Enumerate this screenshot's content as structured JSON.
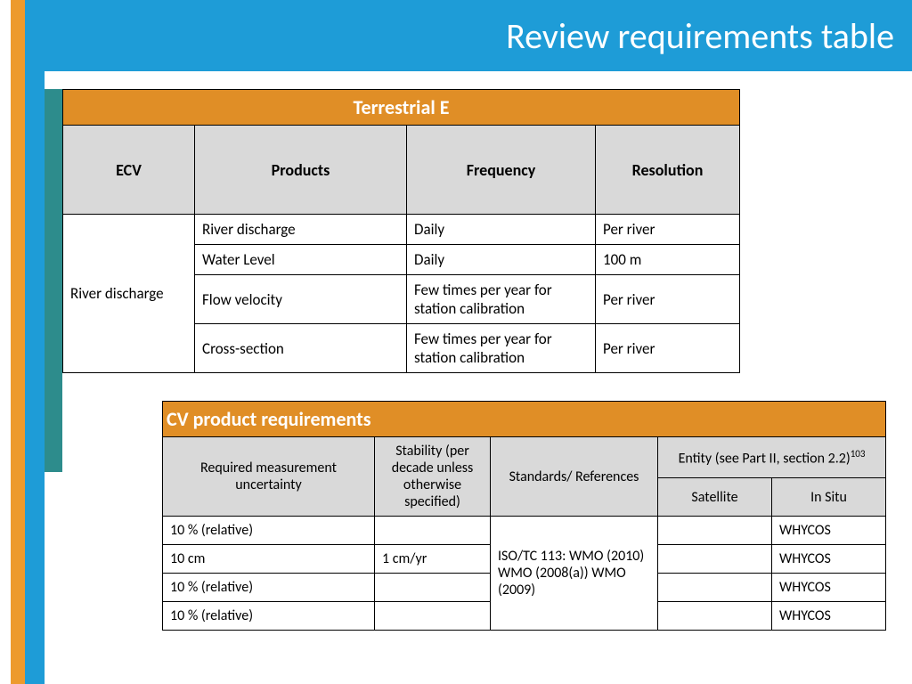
{
  "header": {
    "title": "Review requirements table"
  },
  "colors": {
    "blue": "#1e9cd7",
    "orange_bar": "#ed9a2d",
    "teal": "#2d8c8c",
    "table_banner": "#e08e26",
    "header_bg": "#d9d9d9"
  },
  "table1": {
    "banner": "Terrestrial E",
    "columns": [
      "ECV",
      "Products",
      "Frequency",
      "Resolution"
    ],
    "ecv_label": "River discharge",
    "rows": [
      {
        "product": "River discharge",
        "frequency": "Daily",
        "resolution": "Per river"
      },
      {
        "product": "Water Level",
        "frequency": "Daily",
        "resolution": "100 m"
      },
      {
        "product": "Flow velocity",
        "frequency": "Few times per year for station calibration",
        "resolution": "Per river"
      },
      {
        "product": "Cross-section",
        "frequency": "Few times per year for station calibration",
        "resolution": "Per river"
      }
    ]
  },
  "table2": {
    "banner": "CV product requirements",
    "columns": {
      "uncertainty": "Required measurement uncertainty",
      "stability": "Stability (per decade unless otherwise specified)",
      "standards": "Standards/ References",
      "entity": "Entity (see Part II, section 2.2)",
      "entity_sup": "103",
      "satellite": "Satellite",
      "insitu": "In Situ"
    },
    "standards_merged": "ISO/TC 113: WMO (2010) WMO (2008(a)) WMO (2009)",
    "rows": [
      {
        "uncertainty": "10 % (relative)",
        "stability": "",
        "satellite": "",
        "insitu": "WHYCOS"
      },
      {
        "uncertainty": " 10 cm",
        "stability": "1 cm/yr",
        "satellite": "",
        "insitu": "WHYCOS"
      },
      {
        "uncertainty": "10 % (relative)",
        "stability": "",
        "satellite": "",
        "insitu": "WHYCOS"
      },
      {
        "uncertainty": "10 % (relative)",
        "stability": "",
        "satellite": "",
        "insitu": "WHYCOS"
      }
    ]
  }
}
